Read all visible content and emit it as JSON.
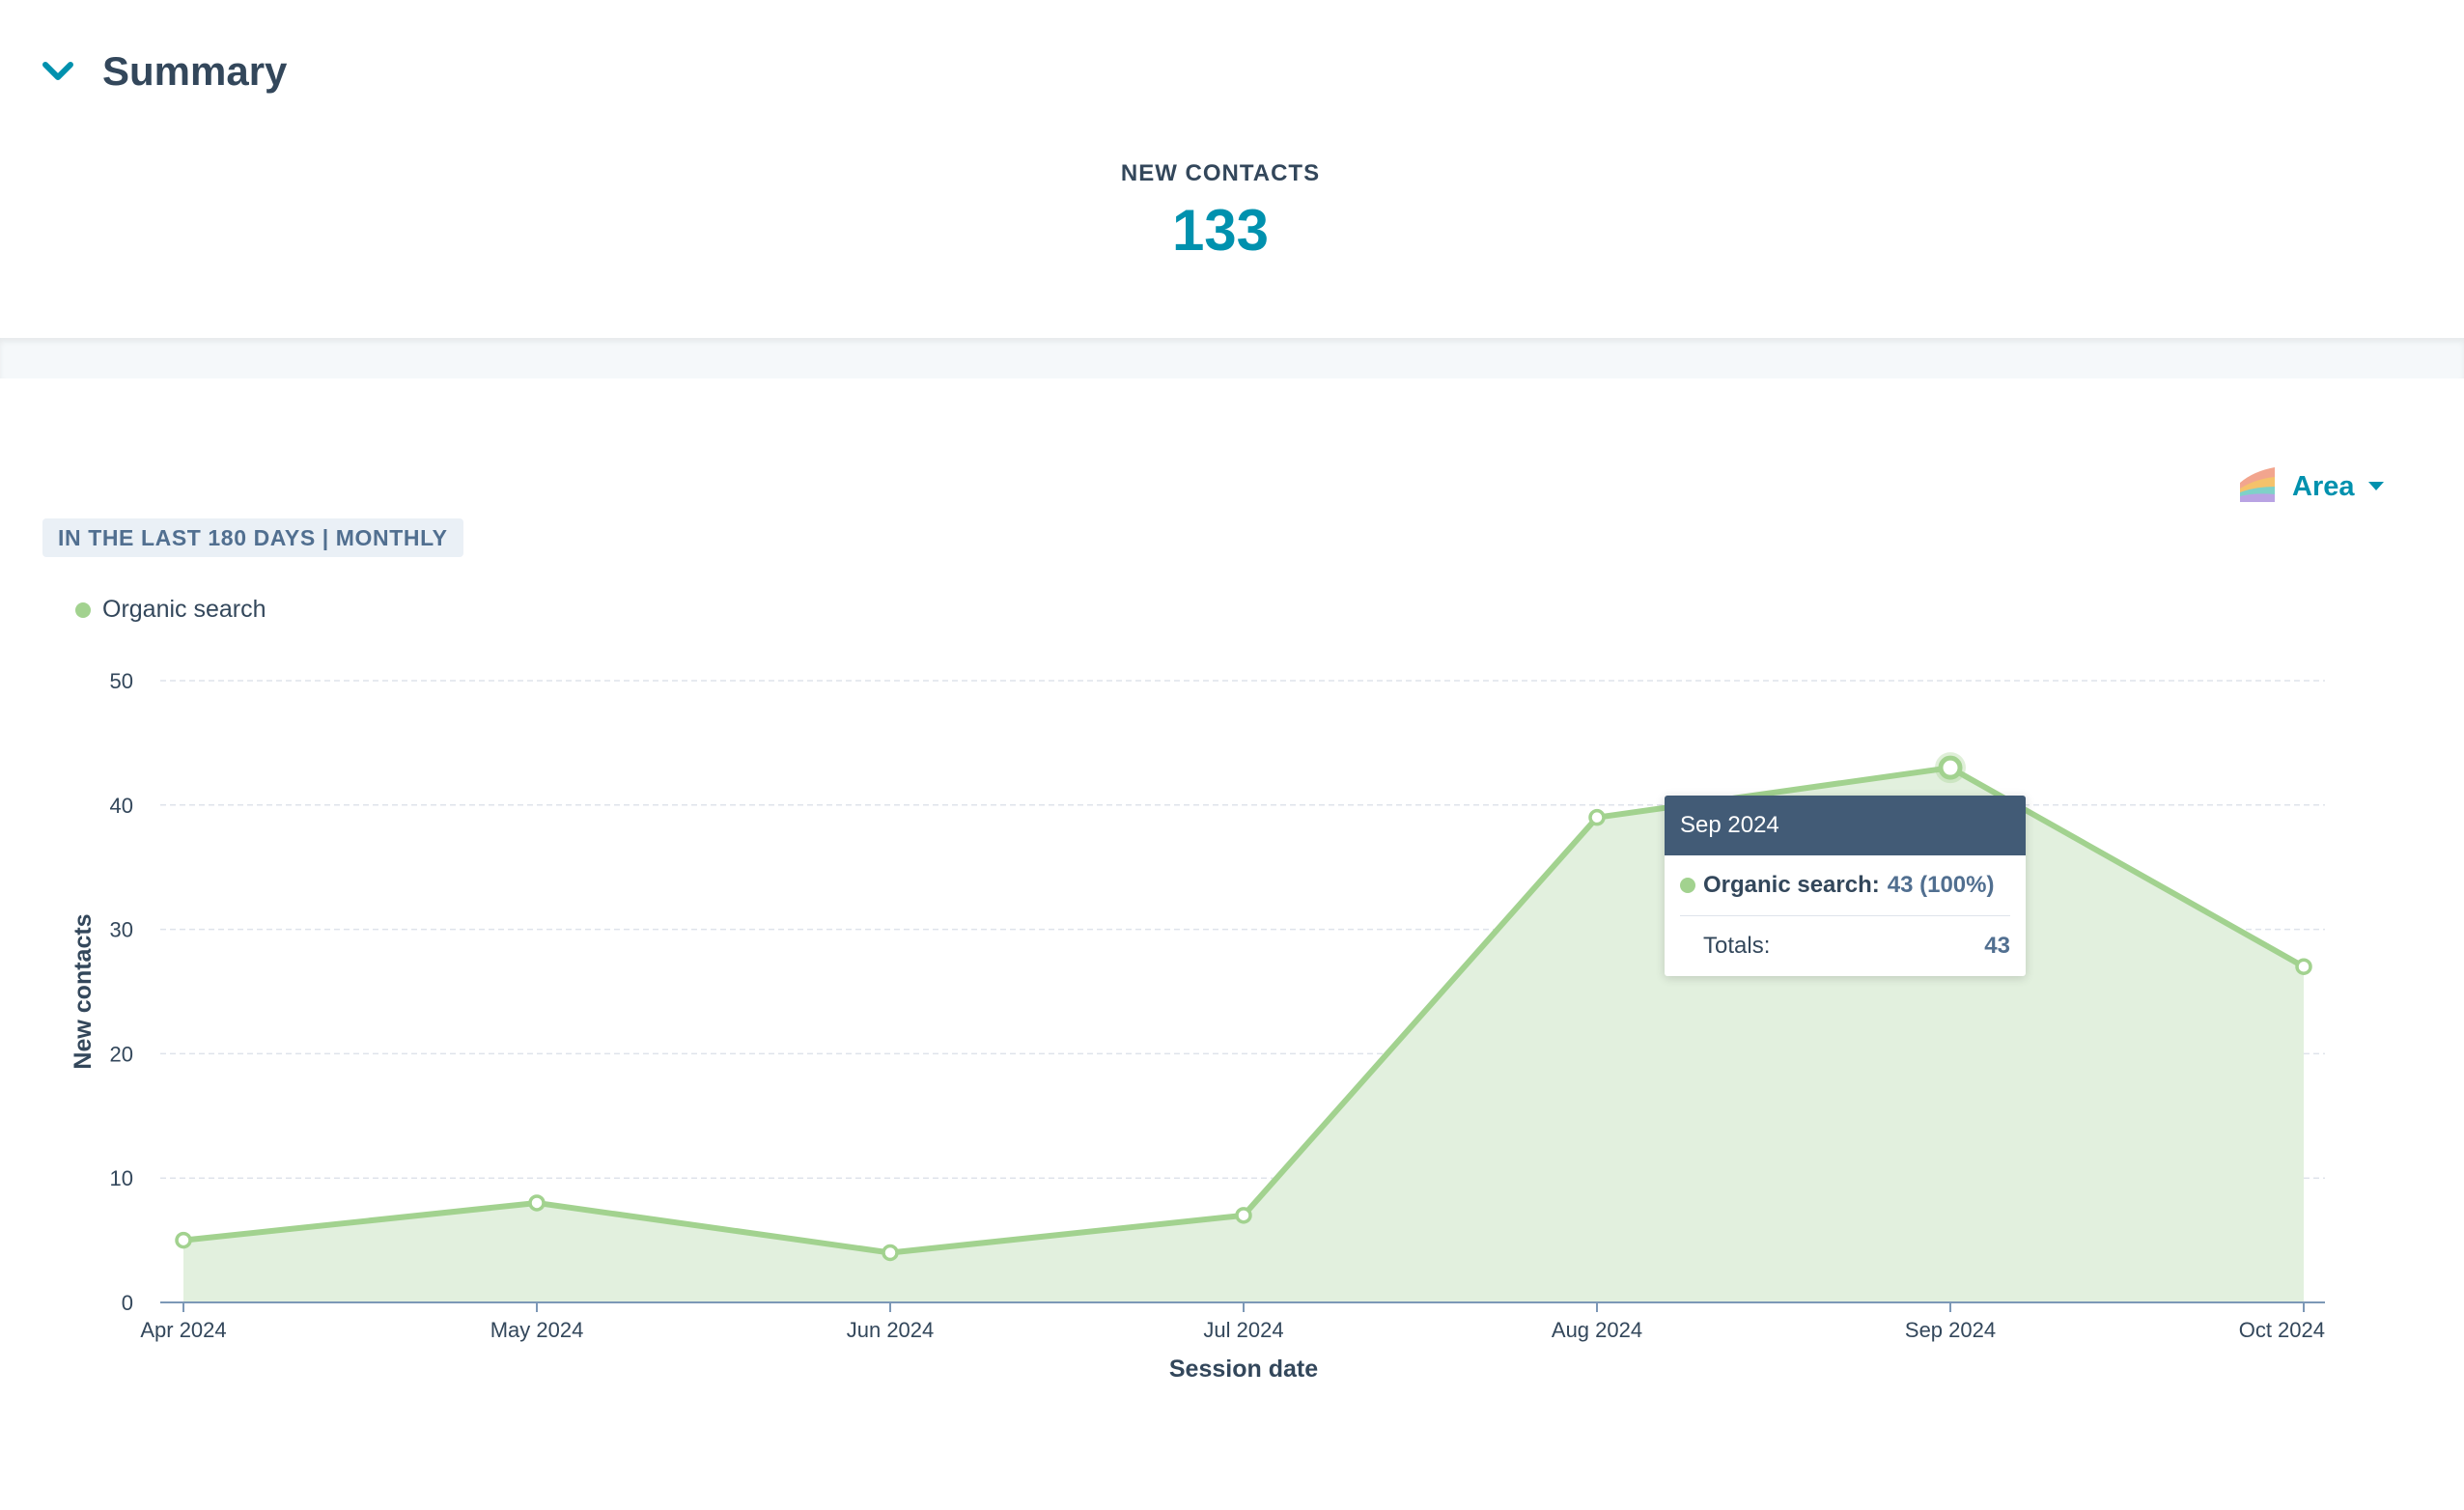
{
  "summary": {
    "title": "Summary",
    "kpi_label": "NEW CONTACTS",
    "kpi_value": "133"
  },
  "controls": {
    "chart_type_label": "Area",
    "range_label": "IN THE LAST 180 DAYS | MONTHLY"
  },
  "colors": {
    "accent": "#0091ae",
    "series_line": "#a2d28f",
    "series_fill": "#e2f0de",
    "text": "#33475b",
    "tooltip_header": "#425b76"
  },
  "tooltip": {
    "title": "Sep 2024",
    "series_label": "Organic search:",
    "series_value": "43 (100%)",
    "totals_label": "Totals:",
    "totals_value": "43"
  },
  "chart_data": {
    "type": "area",
    "categories": [
      "Apr 2024",
      "May 2024",
      "Jun 2024",
      "Jul 2024",
      "Aug 2024",
      "Sep 2024",
      "Oct 2024"
    ],
    "series": [
      {
        "name": "Organic search",
        "values": [
          5,
          8,
          4,
          7,
          39,
          43,
          27
        ]
      }
    ],
    "xlabel": "Session date",
    "ylabel": "New contacts",
    "ylim": [
      0,
      50
    ],
    "yticks": [
      0,
      10,
      20,
      30,
      40,
      50
    ],
    "grid": true,
    "legend": "top-left",
    "highlighted_category": "Sep 2024"
  }
}
